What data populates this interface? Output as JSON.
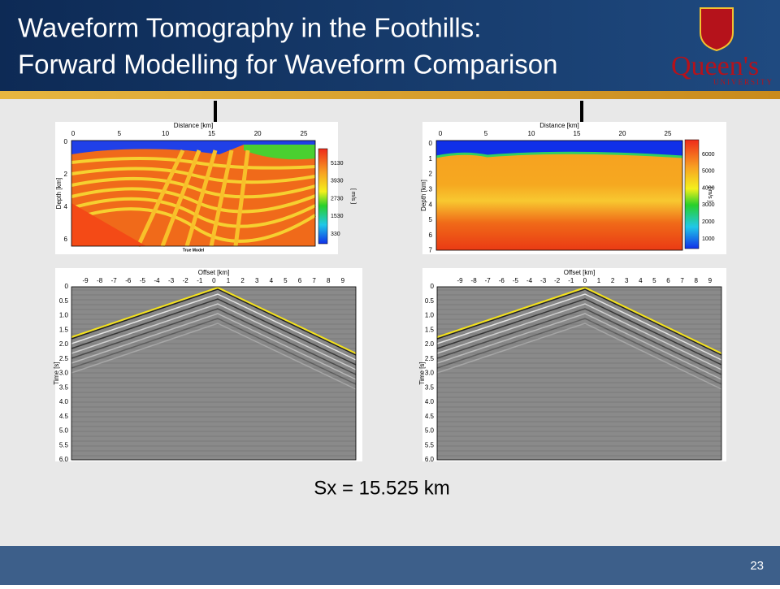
{
  "header": {
    "title_lines": [
      "Waveform Tomography in the Foothills:",
      "Forward Modelling for Waveform Comparison"
    ],
    "logo_name": "Queen's",
    "logo_sub": "UNIVERSITY"
  },
  "models": [
    {
      "xlabel": "Distance [km]",
      "xticks": [
        "0",
        "5",
        "10",
        "15",
        "20",
        "25"
      ],
      "ylabel": "Depth [km]",
      "yticks": [
        "0",
        "2",
        "4",
        "6"
      ],
      "cbar_ticks": [
        "5130",
        "3930",
        "2730",
        "1530",
        "330"
      ],
      "cbar_label": "[ m/s ]",
      "caption": "True Model"
    },
    {
      "xlabel": "Distance [km]",
      "xticks": [
        "0",
        "5",
        "10",
        "15",
        "20",
        "25"
      ],
      "ylabel": "Depth [km]",
      "yticks": [
        "0",
        "1",
        "2",
        "3",
        "4",
        "5",
        "6",
        "7"
      ],
      "cbar_ticks": [
        "6000",
        "5000",
        "4000",
        "3000",
        "2000",
        "1000"
      ],
      "cbar_label": "[ m/s ]"
    }
  ],
  "gathers": [
    {
      "xlabel": "Offset [km]",
      "xticks": [
        "-9",
        "-8",
        "-7",
        "-6",
        "-5",
        "-4",
        "-3",
        "-2",
        "-1",
        "0",
        "1",
        "2",
        "3",
        "4",
        "5",
        "6",
        "7",
        "8",
        "9"
      ],
      "ylabel": "Time [s]",
      "yticks": [
        "0",
        "0.5",
        "1.0",
        "1.5",
        "2.0",
        "2.5",
        "3.0",
        "3.5",
        "4.0",
        "4.5",
        "5.0",
        "5.5",
        "6.0"
      ]
    },
    {
      "xlabel": "Offset [km]",
      "xticks": [
        "-9",
        "-8",
        "-7",
        "-6",
        "-5",
        "-4",
        "-3",
        "-2",
        "-1",
        "0",
        "1",
        "2",
        "3",
        "4",
        "5",
        "6",
        "7",
        "8",
        "9"
      ],
      "ylabel": "Time [s]",
      "yticks": [
        "0",
        "0.5",
        "1.0",
        "1.5",
        "2.0",
        "2.5",
        "3.0",
        "3.5",
        "4.0",
        "4.5",
        "5.0",
        "5.5",
        "6.0"
      ]
    }
  ],
  "caption": "Sx = 15.525 km",
  "page_number": "23"
}
